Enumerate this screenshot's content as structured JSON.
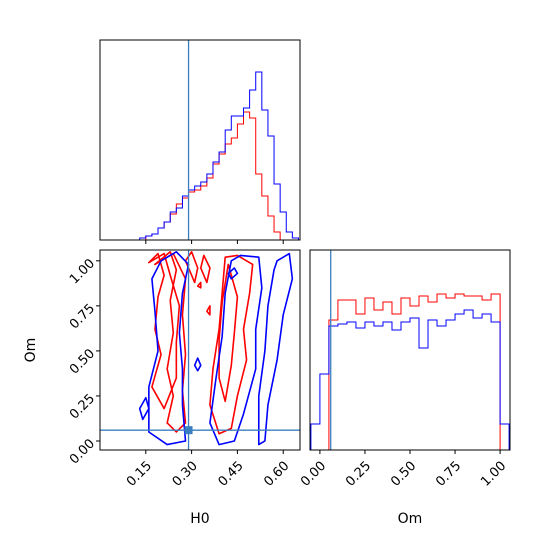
{
  "chart_data": {
    "type": "corner",
    "parameters": [
      "H0",
      "Om"
    ],
    "truth": {
      "H0": 0.29,
      "Om": 0.06,
      "color": "#3a7ebf"
    },
    "series_colors": [
      "#ff0000",
      "#0000ff"
    ],
    "panels": [
      {
        "id": "hist-H0",
        "type": "histogram",
        "xlim": [
          0.0,
          0.655
        ],
        "ylim": [
          0,
          1.0
        ],
        "xticks": [
          0.15,
          0.3,
          0.45,
          0.6
        ],
        "bin_edges": [
          0.13,
          0.15,
          0.17,
          0.19,
          0.21,
          0.23,
          0.25,
          0.27,
          0.29,
          0.31,
          0.33,
          0.35,
          0.37,
          0.39,
          0.41,
          0.43,
          0.45,
          0.47,
          0.49,
          0.51,
          0.53,
          0.55,
          0.57,
          0.59,
          0.61,
          0.63,
          0.65
        ],
        "series": [
          {
            "color": "#ff0000",
            "heights": [
              0.0,
              0.02,
              0.03,
              0.06,
              0.09,
              0.13,
              0.18,
              0.21,
              0.24,
              0.25,
              0.27,
              0.31,
              0.38,
              0.43,
              0.48,
              0.51,
              0.58,
              0.64,
              0.61,
              0.33,
              0.22,
              0.12,
              0.04,
              0.0,
              0.0,
              0.0
            ]
          },
          {
            "color": "#0000ff",
            "heights": [
              0.01,
              0.02,
              0.03,
              0.06,
              0.09,
              0.14,
              0.16,
              0.22,
              0.25,
              0.27,
              0.29,
              0.33,
              0.39,
              0.44,
              0.55,
              0.62,
              0.62,
              0.66,
              0.75,
              0.84,
              0.65,
              0.52,
              0.28,
              0.14,
              0.04,
              0.01
            ]
          }
        ]
      },
      {
        "id": "hist-Om",
        "type": "histogram",
        "xlim": [
          -0.055,
          1.055
        ],
        "ylim": [
          0,
          1.0
        ],
        "xticks": [
          0.0,
          0.25,
          0.5,
          0.75,
          1.0
        ],
        "bin_edges": [
          -0.05,
          0.0,
          0.05,
          0.1,
          0.15,
          0.2,
          0.25,
          0.3,
          0.35,
          0.4,
          0.45,
          0.5,
          0.55,
          0.6,
          0.65,
          0.7,
          0.75,
          0.8,
          0.85,
          0.9,
          0.95,
          1.0,
          1.05
        ],
        "series": [
          {
            "color": "#ff0000",
            "heights": [
              0.0,
              0.0,
              0.65,
              0.75,
              0.75,
              0.68,
              0.76,
              0.7,
              0.74,
              0.68,
              0.76,
              0.72,
              0.77,
              0.74,
              0.78,
              0.76,
              0.78,
              0.77,
              0.77,
              0.75,
              0.78,
              0.0
            ]
          },
          {
            "color": "#0000ff",
            "heights": [
              0.13,
              0.38,
              0.62,
              0.63,
              0.64,
              0.61,
              0.64,
              0.62,
              0.64,
              0.6,
              0.64,
              0.66,
              0.51,
              0.65,
              0.62,
              0.65,
              0.68,
              0.7,
              0.66,
              0.68,
              0.64,
              0.13
            ]
          }
        ]
      },
      {
        "id": "scatter-H0-Om",
        "type": "contour",
        "xlabel": "H0",
        "ylabel": "Om",
        "xlim": [
          0.0,
          0.655
        ],
        "ylim": [
          -0.05,
          1.06
        ],
        "xticks": [
          0.15,
          0.3,
          0.45,
          0.6
        ],
        "yticks": [
          0.0,
          0.25,
          0.5,
          0.75,
          1.0
        ],
        "contours": [
          {
            "color": "#ff0000",
            "points": [
              [
                0.18,
                0.98
              ],
              [
                0.23,
                1.05
              ],
              [
                0.25,
                0.95
              ],
              [
                0.23,
                0.78
              ],
              [
                0.24,
                0.6
              ],
              [
                0.22,
                0.4
              ],
              [
                0.24,
                0.25
              ],
              [
                0.22,
                0.1
              ],
              [
                0.25,
                0.05
              ],
              [
                0.28,
                0.1
              ],
              [
                0.27,
                0.28
              ],
              [
                0.28,
                0.48
              ],
              [
                0.27,
                0.7
              ],
              [
                0.28,
                0.9
              ],
              [
                0.24,
                1.04
              ]
            ]
          },
          {
            "color": "#ff0000",
            "points": [
              [
                0.16,
                0.99
              ],
              [
                0.19,
                1.04
              ],
              [
                0.21,
                0.92
              ],
              [
                0.19,
                0.8
              ],
              [
                0.18,
                0.62
              ],
              [
                0.2,
                0.48
              ],
              [
                0.17,
                0.3
              ],
              [
                0.21,
                0.18
              ],
              [
                0.25,
                0.35
              ],
              [
                0.25,
                0.55
              ],
              [
                0.26,
                0.75
              ],
              [
                0.23,
                0.92
              ],
              [
                0.21,
                1.04
              ]
            ]
          },
          {
            "color": "#ff0000",
            "points": [
              [
                0.45,
                1.03
              ],
              [
                0.5,
                0.98
              ],
              [
                0.49,
                0.82
              ],
              [
                0.47,
                0.62
              ],
              [
                0.48,
                0.45
              ],
              [
                0.45,
                0.25
              ],
              [
                0.43,
                0.07
              ],
              [
                0.39,
                0.04
              ],
              [
                0.36,
                0.2
              ],
              [
                0.37,
                0.4
              ],
              [
                0.39,
                0.62
              ],
              [
                0.4,
                0.82
              ],
              [
                0.41,
                1.02
              ]
            ]
          },
          {
            "color": "#ff0000",
            "points": [
              [
                0.42,
                0.98
              ],
              [
                0.45,
                0.8
              ],
              [
                0.44,
                0.6
              ],
              [
                0.43,
                0.42
              ],
              [
                0.41,
                0.22
              ],
              [
                0.39,
                0.35
              ],
              [
                0.39,
                0.56
              ],
              [
                0.4,
                0.77
              ]
            ]
          },
          {
            "color": "#ff0000",
            "points": [
              [
                0.33,
                0.96
              ],
              [
                0.34,
                1.03
              ],
              [
                0.36,
                0.96
              ],
              [
                0.35,
                0.88
              ]
            ]
          },
          {
            "color": "#ff0000",
            "points": [
              [
                0.28,
                1.0
              ],
              [
                0.3,
                1.05
              ],
              [
                0.32,
                0.96
              ],
              [
                0.31,
                0.88
              ]
            ]
          },
          {
            "color": "#ff0000",
            "points": [
              [
                0.32,
                0.86
              ],
              [
                0.33,
                0.88
              ],
              [
                0.33,
                0.85
              ]
            ]
          },
          {
            "color": "#ff0000",
            "points": [
              [
                0.35,
                0.72
              ],
              [
                0.36,
                0.75
              ],
              [
                0.36,
                0.7
              ]
            ]
          },
          {
            "color": "#0000ff",
            "points": [
              [
                0.2,
                1.0
              ],
              [
                0.25,
                1.05
              ],
              [
                0.29,
                0.98
              ],
              [
                0.27,
                0.82
              ],
              [
                0.26,
                0.6
              ],
              [
                0.27,
                0.4
              ],
              [
                0.27,
                0.2
              ],
              [
                0.28,
                0.0
              ],
              [
                0.22,
                -0.02
              ],
              [
                0.16,
                0.05
              ],
              [
                0.16,
                0.3
              ],
              [
                0.19,
                0.5
              ],
              [
                0.18,
                0.72
              ],
              [
                0.17,
                0.9
              ]
            ]
          },
          {
            "color": "#0000ff",
            "points": [
              [
                0.46,
                1.03
              ],
              [
                0.52,
                1.02
              ],
              [
                0.53,
                0.85
              ],
              [
                0.51,
                0.62
              ],
              [
                0.51,
                0.4
              ],
              [
                0.47,
                0.15
              ],
              [
                0.44,
                0.0
              ],
              [
                0.39,
                -0.02
              ],
              [
                0.36,
                0.1
              ],
              [
                0.38,
                0.35
              ],
              [
                0.4,
                0.58
              ],
              [
                0.41,
                0.82
              ],
              [
                0.43,
                1.0
              ]
            ]
          },
          {
            "color": "#0000ff",
            "points": [
              [
                0.58,
                1.0
              ],
              [
                0.62,
                1.04
              ],
              [
                0.63,
                0.9
              ],
              [
                0.6,
                0.7
              ],
              [
                0.58,
                0.45
              ],
              [
                0.55,
                0.2
              ],
              [
                0.54,
                0.0
              ],
              [
                0.52,
                -0.02
              ],
              [
                0.52,
                0.25
              ],
              [
                0.54,
                0.5
              ],
              [
                0.55,
                0.75
              ],
              [
                0.57,
                0.95
              ]
            ]
          },
          {
            "color": "#0000ff",
            "points": [
              [
                0.42,
                0.93
              ],
              [
                0.44,
                0.96
              ],
              [
                0.45,
                0.93
              ],
              [
                0.43,
                0.9
              ]
            ]
          },
          {
            "color": "#0000ff",
            "points": [
              [
                0.13,
                0.18
              ],
              [
                0.15,
                0.24
              ],
              [
                0.16,
                0.18
              ],
              [
                0.14,
                0.12
              ]
            ]
          },
          {
            "color": "#0000ff",
            "points": [
              [
                0.31,
                0.42
              ],
              [
                0.32,
                0.46
              ],
              [
                0.33,
                0.42
              ],
              [
                0.32,
                0.39
              ]
            ]
          }
        ]
      }
    ]
  }
}
